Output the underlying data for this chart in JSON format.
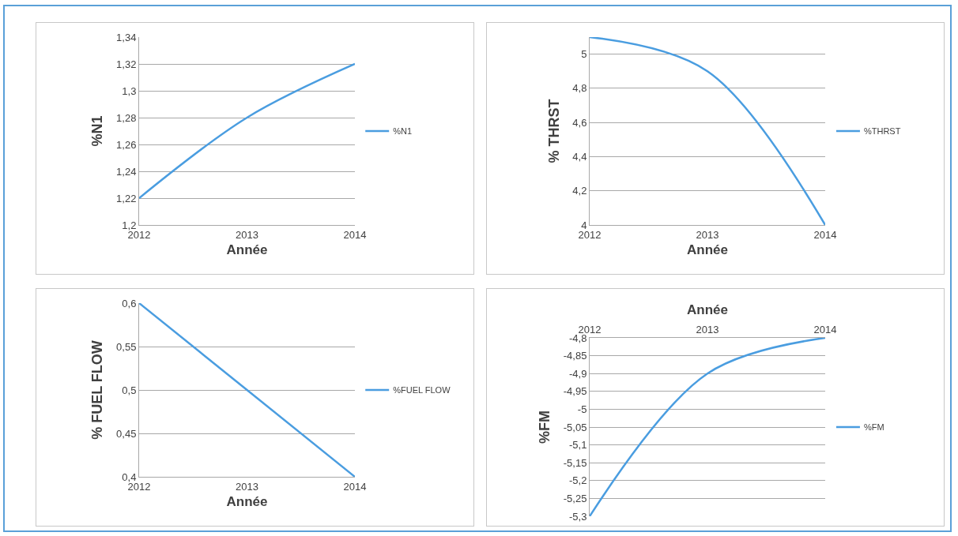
{
  "chart_data": [
    {
      "type": "line",
      "x": [
        2012,
        2013,
        2014
      ],
      "xlim": [
        2012,
        2014
      ],
      "xticks": [
        2012,
        2013,
        2014
      ],
      "xlabel": "Année",
      "ylabel": "%N1",
      "ylim": [
        1.2,
        1.34
      ],
      "yticks": [
        {
          "value": 1.2,
          "label": "1,2"
        },
        {
          "value": 1.22,
          "label": "1,22"
        },
        {
          "value": 1.24,
          "label": "1,24"
        },
        {
          "value": 1.26,
          "label": "1,26"
        },
        {
          "value": 1.28,
          "label": "1,28"
        },
        {
          "value": 1.3,
          "label": "1,3"
        },
        {
          "value": 1.32,
          "label": "1,32"
        },
        {
          "value": 1.34,
          "label": "1,34"
        }
      ],
      "grid": "y",
      "legend": "right",
      "series": [
        {
          "name": "%N1",
          "color": "#4a9de0",
          "values": [
            1.22,
            1.28,
            1.32
          ]
        }
      ]
    },
    {
      "type": "line",
      "x": [
        2012,
        2013,
        2014
      ],
      "xlim": [
        2012,
        2014
      ],
      "xticks": [
        2012,
        2013,
        2014
      ],
      "xlabel": "Année",
      "ylabel": "% THRST",
      "ylim": [
        4,
        5.1
      ],
      "yticks": [
        4,
        {
          "value": 4.2,
          "label": "4,2"
        },
        {
          "value": 4.4,
          "label": "4,4"
        },
        {
          "value": 4.6,
          "label": "4,6"
        },
        {
          "value": 4.8,
          "label": "4,8"
        },
        5
      ],
      "grid": "y",
      "legend": "right",
      "series": [
        {
          "name": "%THRST",
          "color": "#4a9de0",
          "values": [
            5.1,
            4.9,
            4.0
          ]
        }
      ]
    },
    {
      "type": "line",
      "x": [
        2012,
        2013,
        2014
      ],
      "xlim": [
        2012,
        2014
      ],
      "xticks": [
        2012,
        2013,
        2014
      ],
      "xlabel": "Année",
      "ylabel": "% FUEL FLOW",
      "ylim": [
        0.4,
        0.6
      ],
      "yticks": [
        {
          "value": 0.4,
          "label": "0,4"
        },
        {
          "value": 0.45,
          "label": "0,45"
        },
        {
          "value": 0.5,
          "label": "0,5"
        },
        {
          "value": 0.55,
          "label": "0,55"
        },
        {
          "value": 0.6,
          "label": "0,6"
        }
      ],
      "grid": "y",
      "legend": "right",
      "series": [
        {
          "name": "%FUEL FLOW",
          "color": "#4a9de0",
          "values": [
            0.6,
            0.5,
            0.4
          ]
        }
      ]
    },
    {
      "type": "line",
      "x": [
        2012,
        2013,
        2014
      ],
      "xlim": [
        2012,
        2014
      ],
      "xticks": [
        2012,
        2013,
        2014
      ],
      "xlabel": "Année",
      "ylabel": "%FM",
      "ylim": [
        -5.3,
        -4.8
      ],
      "yticks": [
        {
          "value": -5.3,
          "label": "-5,3"
        },
        {
          "value": -5.25,
          "label": "-5,25"
        },
        {
          "value": -5.2,
          "label": "-5,2"
        },
        {
          "value": -5.15,
          "label": "-5,15"
        },
        {
          "value": -5.1,
          "label": "-5,1"
        },
        {
          "value": -5.05,
          "label": "-5,05"
        },
        {
          "value": -5,
          "label": "-5"
        },
        {
          "value": -4.95,
          "label": "-4,95"
        },
        {
          "value": -4.9,
          "label": "-4,9"
        },
        {
          "value": -4.85,
          "label": "-4,85"
        },
        {
          "value": -4.8,
          "label": "-4,8"
        }
      ],
      "grid": "y",
      "legend": "right",
      "series": [
        {
          "name": "%FM",
          "color": "#4a9de0",
          "values": [
            -5.3,
            -4.9,
            -4.8
          ]
        }
      ]
    }
  ]
}
